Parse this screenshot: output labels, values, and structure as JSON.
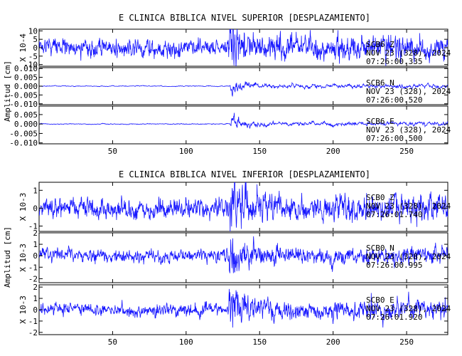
{
  "chart_data": [
    {
      "type": "line",
      "title": "E CLINICA BIBLICA NIVEL SUPERIOR [DESPLAZAMIENTO]",
      "ylabel": "Amplitud [cm]",
      "xlim": [
        0,
        278
      ],
      "xticks": [
        50,
        100,
        150,
        200,
        250
      ],
      "panels": [
        {
          "channel": "SCB6",
          "component": "Z",
          "date_line": "NOV 23 (328), 2024",
          "time_line": "07:26:00.335",
          "scale_label": "X 10-4",
          "ylim": [
            -11,
            11
          ],
          "yticks": [
            10,
            5,
            0,
            -5,
            -10
          ],
          "ytick_labels": [
            "10",
            "5",
            "0",
            "-5",
            "-10"
          ],
          "amp_pre": 3.8,
          "amp_peak": 10.5,
          "amp_coda": 5.5,
          "noise": 2.6,
          "smooth": 0.55,
          "drift": 3.5,
          "seed": 11,
          "onset": 128.5
        },
        {
          "channel": "SCB6",
          "component": "N",
          "date_line": "NOV 23 (328), 2024",
          "time_line": "07:26:00.520",
          "scale_label": "",
          "ylim": [
            -0.0105,
            0.0105
          ],
          "yticks": [
            0.01,
            0.005,
            0.0,
            -0.005,
            -0.01
          ],
          "ytick_labels": [
            "0.010",
            "0.005",
            "0.000",
            "-0.005",
            "-0.010"
          ],
          "amp_pre": 0.0003,
          "amp_peak": 0.0065,
          "amp_coda": 0.0015,
          "noise": 0.00015,
          "smooth": 0.25,
          "drift": 0.0,
          "seed": 23,
          "onset": 129.5
        },
        {
          "channel": "SCB6",
          "component": "E",
          "date_line": "NOV 23 (328), 2024",
          "time_line": "07:26:00.500",
          "scale_label": "",
          "ylim": [
            -0.0105,
            0.0095
          ],
          "yticks": [
            0.005,
            0.0,
            -0.005,
            -0.01
          ],
          "ytick_labels": [
            "0.005",
            "0.000",
            "-0.005",
            "-0.010"
          ],
          "amp_pre": 0.0003,
          "amp_peak": 0.0058,
          "amp_coda": 0.0014,
          "noise": 0.00015,
          "smooth": 0.25,
          "drift": 0.0,
          "seed": 37,
          "onset": 129.5
        }
      ]
    },
    {
      "type": "line",
      "title": "E CLINICA BIBLICA NIVEL INFERIOR [DESPLAZAMIENTO]",
      "ylabel": "Amplitud [cm]",
      "xlim": [
        0,
        278
      ],
      "xticks": [
        50,
        100,
        150,
        200,
        250
      ],
      "panels": [
        {
          "channel": "SCB0",
          "component": "Z",
          "date_line": "NOV 23 (328), 2024",
          "time_line": "07:26:01.740",
          "scale_label": "X 10-3",
          "ylim": [
            -1.3,
            1.45
          ],
          "yticks": [
            1,
            0,
            -1
          ],
          "ytick_labels": [
            "1",
            "0",
            "-1"
          ],
          "amp_pre": 0.45,
          "amp_peak": 1.35,
          "amp_coda": 0.55,
          "noise": 0.28,
          "smooth": 0.55,
          "drift": 0.25,
          "seed": 51,
          "onset": 129.0
        },
        {
          "channel": "SCB0",
          "component": "N",
          "date_line": "NOV 23 (328), 2024",
          "time_line": "07:26:00.995",
          "scale_label": "X 10-3",
          "ylim": [
            -2.35,
            2.0
          ],
          "yticks": [
            2,
            1,
            0,
            -1,
            -2
          ],
          "ytick_labels": [
            "2",
            "1",
            "0",
            "-1",
            "-2"
          ],
          "amp_pre": 0.45,
          "amp_peak": 1.95,
          "amp_coda": 0.6,
          "noise": 0.28,
          "smooth": 0.5,
          "drift": 0.3,
          "seed": 67,
          "onset": 128.5
        },
        {
          "channel": "SCB0",
          "component": "E",
          "date_line": "NOV 23 (328), 2024",
          "time_line": "07:26:01.920",
          "scale_label": "X 10-3",
          "ylim": [
            -2.2,
            2.2
          ],
          "yticks": [
            2,
            1,
            0,
            -1,
            -2
          ],
          "ytick_labels": [
            "2",
            "1",
            "0",
            "-1",
            "-2"
          ],
          "amp_pre": 0.45,
          "amp_peak": 2.05,
          "amp_coda": 0.7,
          "noise": 0.3,
          "smooth": 0.5,
          "drift": 0.35,
          "seed": 83,
          "onset": 128.0
        }
      ]
    }
  ]
}
